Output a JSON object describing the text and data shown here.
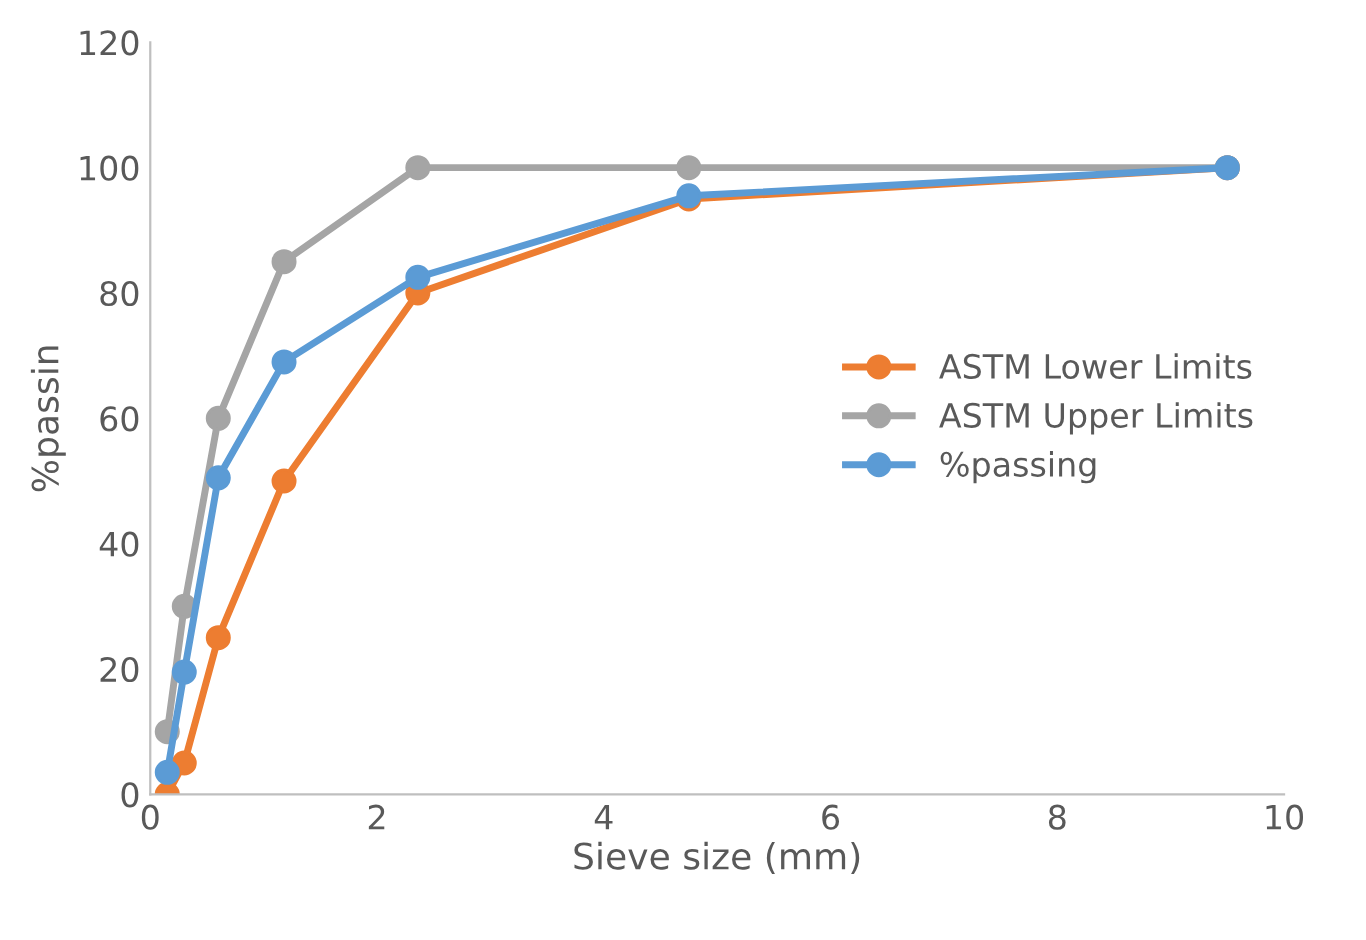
{
  "chart_data": {
    "type": "line",
    "xlabel": "Sieve size (mm)",
    "ylabel": "%passin",
    "x": [
      0.15,
      0.3,
      0.6,
      1.18,
      2.36,
      4.75,
      9.5
    ],
    "series": [
      {
        "name": "ASTM Lower Limits",
        "color": "#ed7d31",
        "values": [
          0,
          5,
          25,
          50,
          80,
          95,
          100
        ]
      },
      {
        "name": "ASTM Upper Limits",
        "color": "#a5a5a5",
        "values": [
          10,
          30,
          60,
          85,
          100,
          100,
          100
        ]
      },
      {
        "name": "%passing",
        "color": "#5b9bd5",
        "values": [
          3.5,
          19.5,
          50.5,
          69,
          82.5,
          95.5,
          100
        ]
      }
    ],
    "xlim": [
      0,
      10
    ],
    "xticks": [
      0,
      2,
      4,
      6,
      8,
      10
    ],
    "ylim": [
      0,
      120
    ],
    "yticks": [
      0,
      20,
      40,
      60,
      80,
      100,
      120
    ],
    "grid": false,
    "legend": "right",
    "marker": "circle",
    "line_style": "solid"
  }
}
